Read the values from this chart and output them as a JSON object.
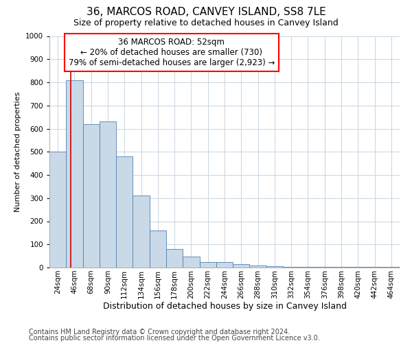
{
  "title": "36, MARCOS ROAD, CANVEY ISLAND, SS8 7LE",
  "subtitle": "Size of property relative to detached houses in Canvey Island",
  "xlabel": "Distribution of detached houses by size in Canvey Island",
  "ylabel": "Number of detached properties",
  "footnote1": "Contains HM Land Registry data © Crown copyright and database right 2024.",
  "footnote2": "Contains public sector information licensed under the Open Government Licence v3.0.",
  "annotation_line1": "36 MARCOS ROAD: 52sqm",
  "annotation_line2": "← 20% of detached houses are smaller (730)",
  "annotation_line3": "79% of semi-detached houses are larger (2,923) →",
  "red_line_x": 52,
  "bar_color": "#c9d9e8",
  "bar_edge_color": "#5080b0",
  "red_line_color": "#cc0000",
  "grid_color": "#c8d4e0",
  "background_color": "#ffffff",
  "categories": [
    "24sqm",
    "46sqm",
    "68sqm",
    "90sqm",
    "112sqm",
    "134sqm",
    "156sqm",
    "178sqm",
    "200sqm",
    "222sqm",
    "244sqm",
    "266sqm",
    "288sqm",
    "310sqm",
    "332sqm",
    "354sqm",
    "376sqm",
    "398sqm",
    "420sqm",
    "442sqm",
    "464sqm"
  ],
  "bin_starts": [
    24,
    46,
    68,
    90,
    112,
    134,
    156,
    178,
    200,
    222,
    244,
    266,
    288,
    310,
    332,
    354,
    376,
    398,
    420,
    442,
    464
  ],
  "bin_width": 22,
  "values": [
    500,
    810,
    620,
    630,
    480,
    310,
    160,
    80,
    47,
    25,
    25,
    15,
    10,
    5,
    4,
    3,
    3,
    3,
    3,
    3,
    3
  ],
  "ylim": [
    0,
    1000
  ],
  "yticks": [
    0,
    100,
    200,
    300,
    400,
    500,
    600,
    700,
    800,
    900,
    1000
  ],
  "title_fontsize": 11,
  "subtitle_fontsize": 9,
  "xlabel_fontsize": 9,
  "ylabel_fontsize": 8,
  "tick_fontsize": 7.5,
  "annotation_fontsize": 8.5,
  "footnote_fontsize": 7
}
